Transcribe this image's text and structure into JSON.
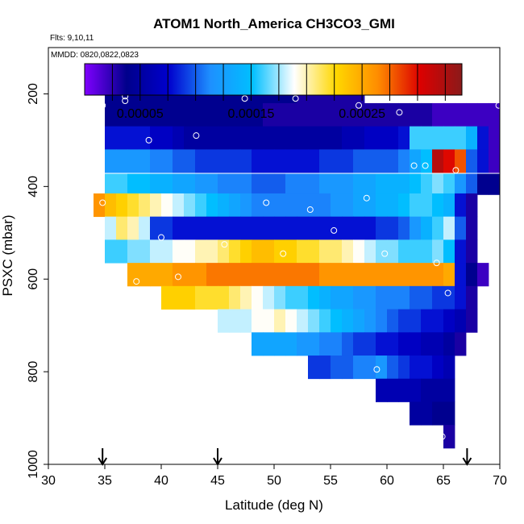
{
  "chart_data": {
    "type": "heatmap",
    "title": "ATOM1 North_America CH3CO3_GMI",
    "flights_label": "Flts: 9,10,11",
    "dates_label": "MMDD: 0820,0822,0823",
    "xlabel": "Latitude (deg N)",
    "ylabel": "PSXC (mbar)",
    "xlim": [
      30,
      70
    ],
    "ylim": [
      1000,
      100
    ],
    "x_ticks": [
      "30",
      "35",
      "40",
      "45",
      "50",
      "55",
      "60",
      "65",
      "70"
    ],
    "y_ticks": [
      "200",
      "400",
      "600",
      "800",
      "1000"
    ],
    "colorbar": {
      "range": [
        0,
        0.00034
      ],
      "tick_labels": [
        "0.00005",
        "0.00015",
        "0.00025"
      ],
      "tick_values": [
        5e-05,
        0.00015,
        0.00025
      ],
      "stops": [
        "#8000ff",
        "#00008b",
        "#0000cd",
        "#1e90ff",
        "#00bfff",
        "#ffffff",
        "#ffd700",
        "#ff8c00",
        "#dc0000",
        "#8b1a1a"
      ]
    },
    "arrows_latitude": [
      34.8,
      45.0,
      67.1
    ],
    "cell_width_deg": 1.0,
    "layers": [
      {
        "p": 200,
        "lat0": 35,
        "values": [
          4e-05,
          4e-05,
          4e-05,
          4e-05,
          4e-05,
          4e-05,
          4e-05,
          4e-05,
          4e-05,
          4e-05,
          4e-05,
          4e-05,
          4e-05,
          4e-05,
          4e-05,
          4e-05,
          4e-05,
          3e-05,
          3e-05,
          3e-05,
          3e-05,
          3e-05,
          3e-05
        ]
      },
      {
        "p": 245,
        "lat0": 35,
        "values": [
          4e-05,
          4e-05,
          4e-05,
          4e-05,
          4e-05,
          4e-05,
          4e-05,
          4e-05,
          4e-05,
          4e-05,
          4e-05,
          4e-05,
          4e-05,
          4e-05,
          3e-05,
          3e-05,
          3e-05,
          3e-05,
          3e-05,
          3e-05,
          3e-05,
          3e-05,
          3e-05,
          3e-05,
          3e-05,
          3e-05,
          3e-05,
          3e-05,
          3e-05,
          2e-05,
          2e-05,
          2e-05,
          2e-05,
          2e-05,
          2e-05
        ]
      },
      {
        "p": 295,
        "lat0": 35,
        "values": [
          8e-05,
          8e-05,
          8e-05,
          8e-05,
          7e-05,
          7e-05,
          6e-05,
          5e-05,
          5e-05,
          5e-05,
          5e-05,
          5e-05,
          5e-05,
          5e-05,
          5e-05,
          5e-05,
          5e-05,
          5e-05,
          5e-05,
          5e-05,
          5e-05,
          6e-05,
          6e-05,
          7e-05,
          7e-05,
          7e-05,
          8e-05,
          0.00016,
          0.00016,
          0.00016,
          0.00016,
          0.00016,
          0.00014,
          8e-05,
          2e-05
        ]
      },
      {
        "p": 345,
        "lat0": 35,
        "values": [
          0.00012,
          0.00012,
          0.00012,
          0.00012,
          0.00011,
          0.00011,
          0.0001,
          0.0001,
          9e-05,
          9e-05,
          9e-05,
          9e-05,
          9e-05,
          8e-05,
          8e-05,
          8e-05,
          8e-05,
          8e-05,
          8e-05,
          9e-05,
          9e-05,
          9e-05,
          0.0001,
          0.0001,
          0.0001,
          0.0001,
          0.00011,
          0.00013,
          0.00015,
          0.00032,
          0.0003,
          0.00028,
          0.0001,
          8e-05,
          2e-05
        ]
      },
      {
        "p": 395,
        "lat0": 35,
        "values": [
          0.00016,
          0.00016,
          0.00015,
          0.00015,
          0.00014,
          0.00014,
          0.00013,
          0.00013,
          0.00012,
          0.00012,
          0.00011,
          0.00011,
          0.00011,
          0.0001,
          0.0001,
          0.0001,
          0.00011,
          0.00011,
          0.00011,
          0.00012,
          0.00012,
          0.00012,
          0.00013,
          0.00013,
          0.00014,
          0.00014,
          0.00014,
          0.00015,
          0.00016,
          0.00017,
          0.00016,
          0.00012,
          0.0001,
          4e-05,
          4e-05
        ]
      },
      {
        "p": 440,
        "lat0": 34,
        "values": [
          0.00026,
          0.00024,
          0.00023,
          0.00022,
          0.00021,
          0.0002,
          0.00019,
          0.00018,
          0.00017,
          0.00016,
          0.00015,
          0.00014,
          0.00013,
          0.00012,
          0.00011,
          0.00011,
          0.00011,
          0.00011,
          0.00011,
          0.00011,
          0.00011,
          0.00012,
          0.00012,
          0.00013,
          0.00013,
          0.00014,
          0.00014,
          0.00015,
          0.00016,
          0.00016,
          0.00015,
          0.00014,
          8e-05,
          3e-05
        ]
      },
      {
        "p": 490,
        "lat0": 35,
        "values": [
          0.00018,
          0.00021,
          0.0002,
          0.00018,
          9e-05,
          9e-05,
          8e-05,
          8e-05,
          8e-05,
          8e-05,
          8e-05,
          8e-05,
          8e-05,
          8e-05,
          8e-05,
          8e-05,
          8e-05,
          8e-05,
          8e-05,
          8e-05,
          8e-05,
          8e-05,
          8e-05,
          8e-05,
          9e-05,
          9e-05,
          0.0001,
          0.00012,
          0.00014,
          0.00016,
          0.00018,
          0.0001,
          3e-05
        ]
      },
      {
        "p": 540,
        "lat0": 35,
        "values": [
          0.00016,
          0.00016,
          0.00017,
          0.00017,
          0.00018,
          0.00018,
          0.00019,
          0.00019,
          0.0002,
          0.0002,
          0.00021,
          0.00022,
          0.00023,
          0.00024,
          0.00024,
          0.00023,
          0.00023,
          0.00022,
          0.00022,
          0.00021,
          0.00021,
          0.0002,
          0.00019,
          0.00018,
          0.00017,
          0.00017,
          0.00016,
          0.00016,
          0.00016,
          0.00017,
          0.00015,
          8e-05,
          3e-05
        ]
      },
      {
        "p": 590,
        "lat0": 37,
        "values": [
          0.00025,
          0.00025,
          0.00025,
          0.00025,
          0.00026,
          0.00026,
          0.00026,
          0.00027,
          0.00027,
          0.00027,
          0.00027,
          0.00027,
          0.00027,
          0.00027,
          0.00027,
          0.00027,
          0.00027,
          0.00026,
          0.00026,
          0.00026,
          0.00026,
          0.00026,
          0.00026,
          0.00026,
          0.00026,
          0.00026,
          0.00026,
          0.00026,
          0.00025,
          8e-05,
          4e-05,
          2e-05
        ]
      },
      {
        "p": 640,
        "lat0": 40,
        "values": [
          0.00023,
          0.00023,
          0.00023,
          0.00022,
          0.00022,
          0.00022,
          0.00021,
          0.0002,
          0.00019,
          0.00018,
          0.00017,
          0.00016,
          0.00016,
          0.00015,
          0.00014,
          0.00013,
          0.00013,
          0.00012,
          0.00012,
          0.00011,
          0.00011,
          0.00011,
          0.0001,
          0.0001,
          9e-05,
          9e-05,
          8e-05,
          3e-05
        ]
      },
      {
        "p": 690,
        "lat0": 45,
        "values": [
          0.00018,
          0.00018,
          0.00018,
          0.00019,
          0.00019,
          0.0002,
          0.00019,
          0.00018,
          0.00017,
          0.00016,
          0.00015,
          0.00014,
          0.00013,
          0.00012,
          0.00011,
          0.0001,
          9e-05,
          9e-05,
          8e-05,
          8e-05,
          7e-05,
          6e-05,
          3e-05
        ]
      },
      {
        "p": 740,
        "lat0": 48,
        "values": [
          0.00013,
          0.00013,
          0.00013,
          0.00013,
          0.00012,
          0.00012,
          0.00011,
          0.00011,
          0.0001,
          9e-05,
          9e-05,
          8e-05,
          8e-05,
          7e-05,
          7e-05,
          6e-05,
          6e-05,
          5e-05,
          3e-05
        ]
      },
      {
        "p": 790,
        "lat0": 53,
        "values": [
          9e-05,
          9e-05,
          0.0001,
          0.0001,
          0.00011,
          0.00011,
          0.00012,
          0.0001,
          9e-05,
          8e-05,
          8e-05,
          7e-05,
          6e-05
        ]
      },
      {
        "p": 840,
        "lat0": 59,
        "values": [
          6e-05,
          6e-05,
          6e-05,
          6e-05,
          5e-05,
          5e-05,
          5e-05
        ]
      },
      {
        "p": 890,
        "lat0": 62,
        "values": [
          5e-05,
          5e-05,
          4e-05,
          4e-05
        ]
      },
      {
        "p": 940,
        "lat0": 65,
        "values": [
          3e-05
        ]
      }
    ],
    "observations": [
      {
        "lat": 35.1,
        "p": 190
      },
      {
        "lat": 34.8,
        "p": 225
      },
      {
        "lat": 35.9,
        "p": 190
      },
      {
        "lat": 36.5,
        "p": 190
      },
      {
        "lat": 36.8,
        "p": 205
      },
      {
        "lat": 36.8,
        "p": 215
      },
      {
        "lat": 43.1,
        "p": 290
      },
      {
        "lat": 38.9,
        "p": 300
      },
      {
        "lat": 47.4,
        "p": 210
      },
      {
        "lat": 51.9,
        "p": 210
      },
      {
        "lat": 57.5,
        "p": 225
      },
      {
        "lat": 61.1,
        "p": 240
      },
      {
        "lat": 69.9,
        "p": 225
      },
      {
        "lat": 62.4,
        "p": 355
      },
      {
        "lat": 63.4,
        "p": 355
      },
      {
        "lat": 66.1,
        "p": 365
      },
      {
        "lat": 34.8,
        "p": 435
      },
      {
        "lat": 49.3,
        "p": 435
      },
      {
        "lat": 58.2,
        "p": 425
      },
      {
        "lat": 53.2,
        "p": 450
      },
      {
        "lat": 55.3,
        "p": 495
      },
      {
        "lat": 40.0,
        "p": 510
      },
      {
        "lat": 45.6,
        "p": 525
      },
      {
        "lat": 50.8,
        "p": 545
      },
      {
        "lat": 59.8,
        "p": 545
      },
      {
        "lat": 64.4,
        "p": 565
      },
      {
        "lat": 37.8,
        "p": 605
      },
      {
        "lat": 41.5,
        "p": 595
      },
      {
        "lat": 65.4,
        "p": 630
      },
      {
        "lat": 59.1,
        "p": 795
      },
      {
        "lat": 64.9,
        "p": 940
      }
    ]
  }
}
